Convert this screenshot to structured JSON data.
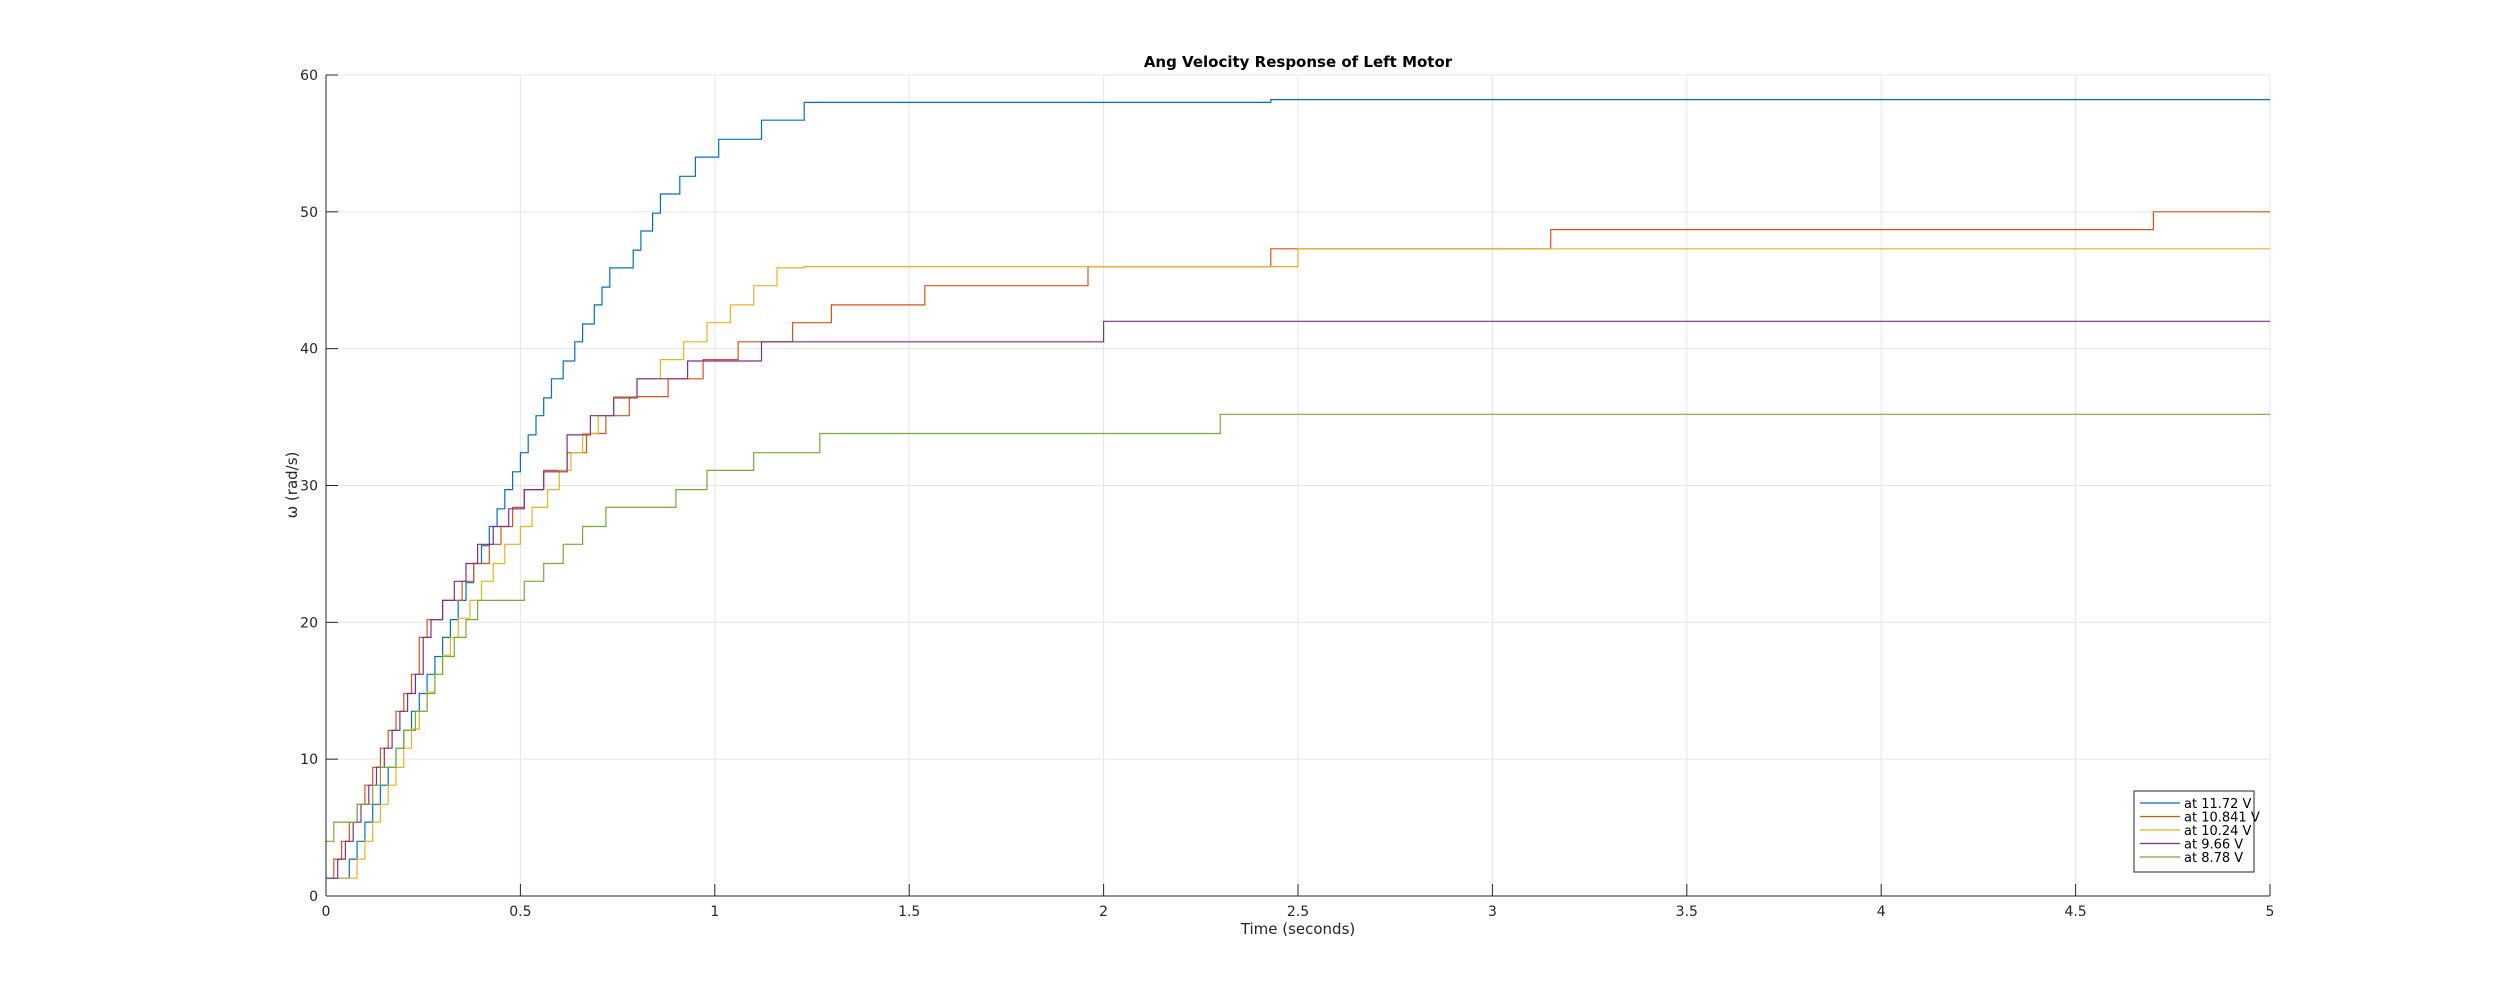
{
  "chart_data": {
    "type": "line",
    "title": "Ang Velocity Response of Left Motor",
    "xlabel": "Time (seconds)",
    "ylabel": "ω (rad/s)",
    "xlim": [
      0,
      5
    ],
    "ylim": [
      0,
      60
    ],
    "xticks": [
      0,
      0.5,
      1,
      1.5,
      2,
      2.5,
      3,
      3.5,
      4,
      4.5,
      5
    ],
    "xtick_labels": [
      "0",
      "0.5",
      "1",
      "1.5",
      "2",
      "2.5",
      "3",
      "3.5",
      "4",
      "4.5",
      "5"
    ],
    "yticks": [
      0,
      10,
      20,
      30,
      40,
      50,
      60
    ],
    "ytick_labels": [
      "0",
      "10",
      "20",
      "30",
      "40",
      "50",
      "60"
    ],
    "grid": true,
    "legend_position": "bottom-right",
    "step": true,
    "series": [
      {
        "name": "at 11.72 V",
        "color": "#0072BD",
        "x": [
          0,
          0.04,
          0.06,
          0.08,
          0.1,
          0.12,
          0.14,
          0.16,
          0.18,
          0.2,
          0.22,
          0.24,
          0.26,
          0.28,
          0.3,
          0.32,
          0.34,
          0.36,
          0.38,
          0.4,
          0.42,
          0.44,
          0.46,
          0.48,
          0.5,
          0.52,
          0.54,
          0.56,
          0.58,
          0.61,
          0.64,
          0.66,
          0.69,
          0.71,
          0.73,
          0.79,
          0.81,
          0.84,
          0.86,
          0.91,
          0.95,
          1.01,
          1.12,
          1.23,
          1.35,
          1.44,
          1.6,
          1.8,
          2.43,
          5
        ],
        "y": [
          1.3,
          1.3,
          2.7,
          4,
          5.4,
          6.7,
          8.1,
          9.4,
          10.8,
          12.1,
          13.5,
          14.8,
          16.2,
          17.5,
          18.9,
          20.2,
          21.6,
          22.9,
          24.3,
          25.6,
          27,
          28.3,
          29.7,
          31,
          32.4,
          33.7,
          35.1,
          36.4,
          37.8,
          39.1,
          40.5,
          41.8,
          43.2,
          44.5,
          45.9,
          47.2,
          48.6,
          49.9,
          51.3,
          52.6,
          54,
          55.3,
          56.7,
          58,
          58,
          58,
          58,
          58,
          58.2,
          58.2
        ]
      },
      {
        "name": "at 10.841 V",
        "color": "#D95319",
        "x": [
          0,
          0.02,
          0.04,
          0.06,
          0.08,
          0.1,
          0.12,
          0.14,
          0.16,
          0.18,
          0.2,
          0.22,
          0.24,
          0.26,
          0.3,
          0.35,
          0.38,
          0.42,
          0.45,
          0.48,
          0.51,
          0.56,
          0.62,
          0.67,
          0.72,
          0.78,
          0.88,
          0.97,
          1.06,
          1.2,
          1.3,
          1.54,
          1.96,
          2.43,
          3.15,
          3.64,
          4.7,
          5
        ],
        "y": [
          1.3,
          2.7,
          4,
          5.4,
          6.7,
          8.1,
          9.4,
          10.8,
          12.1,
          13.5,
          14.8,
          16.2,
          18.9,
          20.2,
          21.6,
          23,
          24.3,
          25.7,
          27,
          28.4,
          29.7,
          31.1,
          32.4,
          33.8,
          35.1,
          36.5,
          37.8,
          39.2,
          40.5,
          41.9,
          43.2,
          44.6,
          46,
          47.3,
          48.7,
          48.7,
          50,
          50
        ]
      },
      {
        "name": "at 10.24 V",
        "color": "#EDB120",
        "x": [
          0,
          0.06,
          0.08,
          0.1,
          0.12,
          0.14,
          0.16,
          0.18,
          0.2,
          0.22,
          0.24,
          0.26,
          0.28,
          0.3,
          0.32,
          0.34,
          0.37,
          0.4,
          0.43,
          0.46,
          0.5,
          0.53,
          0.57,
          0.6,
          0.63,
          0.66,
          0.7,
          0.74,
          0.8,
          0.86,
          0.92,
          0.98,
          1.04,
          1.1,
          1.16,
          1.23,
          1.32,
          1.44,
          1.61,
          1.85,
          2.5,
          5
        ],
        "y": [
          1.3,
          1.3,
          2.7,
          4,
          5.4,
          6.7,
          8.1,
          9.4,
          10.8,
          12.2,
          13.5,
          14.9,
          16.2,
          17.6,
          18.9,
          20.3,
          21.6,
          23,
          24.3,
          25.7,
          27,
          28.4,
          29.7,
          31.1,
          32.4,
          33.8,
          35.1,
          36.5,
          37.8,
          39.2,
          40.5,
          41.9,
          43.2,
          44.6,
          45.9,
          46,
          46,
          46,
          46,
          46,
          47.3,
          47.3
        ]
      },
      {
        "name": "at 9.66 V",
        "color": "#7E2F8E",
        "x": [
          0,
          0.03,
          0.05,
          0.07,
          0.09,
          0.11,
          0.13,
          0.15,
          0.17,
          0.19,
          0.21,
          0.23,
          0.25,
          0.27,
          0.3,
          0.33,
          0.36,
          0.39,
          0.43,
          0.47,
          0.51,
          0.56,
          0.62,
          0.68,
          0.74,
          0.8,
          0.93,
          1.12,
          1.34,
          2.0,
          5
        ],
        "y": [
          1.3,
          2.7,
          4,
          5.4,
          6.7,
          8.1,
          9.4,
          10.8,
          12.1,
          13.5,
          14.8,
          16.2,
          18.9,
          20.2,
          21.6,
          23,
          24.3,
          25.7,
          27,
          28.3,
          29.7,
          31,
          33.7,
          35.1,
          36.4,
          37.8,
          39.1,
          40.5,
          40.5,
          42,
          42
        ]
      },
      {
        "name": "at 8.78 V",
        "color": "#77AC30",
        "x": [
          0,
          0.02,
          0.04,
          0.08,
          0.1,
          0.12,
          0.14,
          0.18,
          0.2,
          0.23,
          0.26,
          0.28,
          0.3,
          0.33,
          0.36,
          0.39,
          0.43,
          0.46,
          0.51,
          0.56,
          0.61,
          0.66,
          0.72,
          0.8,
          0.9,
          0.98,
          1.1,
          1.27,
          1.57,
          2.3,
          5
        ],
        "y": [
          4,
          5.4,
          5.4,
          6.7,
          6.7,
          8.1,
          9.4,
          10.8,
          12.1,
          13.5,
          14.8,
          16.2,
          17.5,
          18.9,
          20.2,
          21.6,
          21.6,
          21.6,
          23,
          24.3,
          25.7,
          27,
          28.4,
          28.4,
          29.7,
          31.1,
          32.4,
          33.8,
          33.8,
          35.2,
          35.2
        ]
      }
    ]
  }
}
